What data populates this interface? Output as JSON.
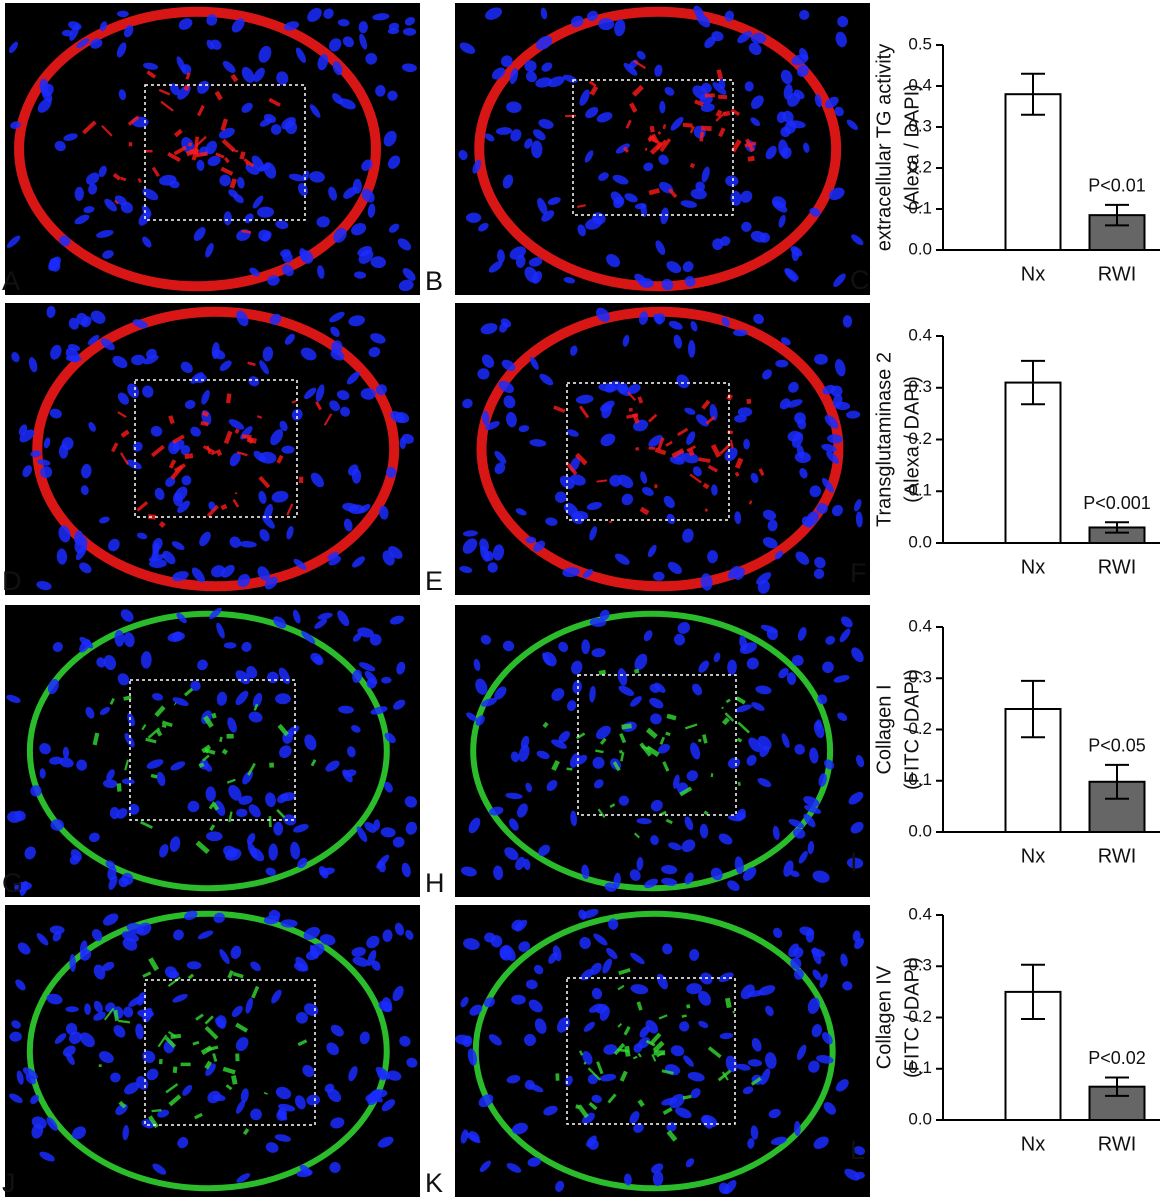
{
  "image_panels": [
    {
      "label": "A"
    },
    {
      "label": "B"
    },
    {
      "label": "D"
    },
    {
      "label": "E"
    },
    {
      "label": "G"
    },
    {
      "label": "H"
    },
    {
      "label": "J"
    },
    {
      "label": "K"
    }
  ],
  "chart_data": [
    {
      "type": "bar",
      "label": "C",
      "ylabel": [
        "extracellular TG activity",
        "(Alexa / DAPI)"
      ],
      "categories": [
        "Nx",
        "RWI"
      ],
      "values": [
        0.38,
        0.085
      ],
      "errors": [
        0.05,
        0.025
      ],
      "colors": [
        "#ffffff",
        "#666666"
      ],
      "annotation": "P<0.01",
      "ylim": [
        0,
        0.5
      ],
      "yticks": [
        {
          "value": 0,
          "label": "0.0"
        },
        0.1,
        0.2,
        0.3,
        0.4,
        0.5
      ]
    },
    {
      "type": "bar",
      "label": "F",
      "ylabel": [
        "Transglutaminase 2",
        "(Alexa / DAPI)"
      ],
      "categories": [
        "Nx",
        "RWI"
      ],
      "values": [
        0.31,
        0.03
      ],
      "errors": [
        0.042,
        0.01
      ],
      "colors": [
        "#ffffff",
        "#666666"
      ],
      "annotation": "P<0.001",
      "ylim": [
        0,
        0.4
      ],
      "yticks": [
        {
          "value": 0,
          "label": "0.0"
        },
        0.1,
        0.2,
        0.3,
        0.4
      ]
    },
    {
      "type": "bar",
      "label": "I",
      "ylabel": [
        "Collagen I",
        "(FITC / DAPI)"
      ],
      "categories": [
        "Nx",
        "RWI"
      ],
      "values": [
        0.24,
        0.098
      ],
      "errors": [
        0.055,
        0.033
      ],
      "colors": [
        "#ffffff",
        "#666666"
      ],
      "annotation": "P<0.05",
      "ylim": [
        0,
        0.4
      ],
      "yticks": [
        {
          "value": 0,
          "label": "0.0"
        },
        0.1,
        0.2,
        0.3,
        0.4
      ]
    },
    {
      "type": "bar",
      "label": "L",
      "ylabel": [
        "Collagen IV",
        "(FITC / DAPI)"
      ],
      "categories": [
        "Nx",
        "RWI"
      ],
      "values": [
        0.25,
        0.065
      ],
      "errors": [
        0.053,
        0.018
      ],
      "colors": [
        "#ffffff",
        "#666666"
      ],
      "annotation": "P<0.02",
      "ylim": [
        0,
        0.4
      ],
      "yticks": [
        {
          "value": 0,
          "label": "0.0"
        },
        0.1,
        0.2,
        0.3,
        0.4
      ]
    }
  ]
}
